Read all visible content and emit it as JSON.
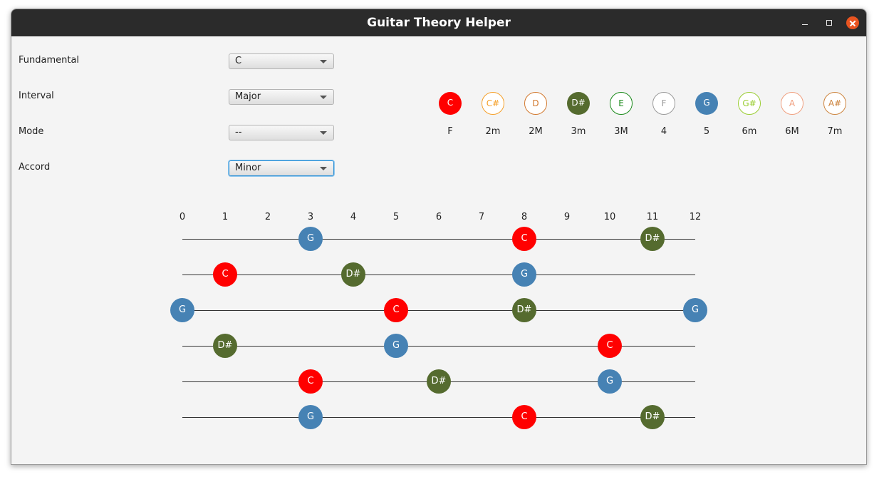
{
  "window": {
    "title": "Guitar Theory Helper"
  },
  "controls": [
    {
      "key": "fundamental",
      "label": "Fundamental",
      "value": "C",
      "focused": false
    },
    {
      "key": "interval",
      "label": "Interval",
      "value": "Major",
      "focused": false
    },
    {
      "key": "mode",
      "label": "Mode",
      "value": "--",
      "focused": false
    },
    {
      "key": "accord",
      "label": "Accord",
      "value": "Minor",
      "focused": true
    }
  ],
  "legend": [
    {
      "note": "C",
      "interval": "F",
      "filled": true,
      "color": "#ff0000"
    },
    {
      "note": "C#",
      "interval": "2m",
      "filled": false,
      "color": "#f5a02a"
    },
    {
      "note": "D",
      "interval": "2M",
      "filled": false,
      "color": "#d2782d"
    },
    {
      "note": "D#",
      "interval": "3m",
      "filled": true,
      "color": "#556b2f"
    },
    {
      "note": "E",
      "interval": "3M",
      "filled": false,
      "color": "#1a8a1a"
    },
    {
      "note": "F",
      "interval": "4",
      "filled": false,
      "color": "#9a9a9a"
    },
    {
      "note": "G",
      "interval": "5",
      "filled": true,
      "color": "#4682b4"
    },
    {
      "note": "G#",
      "interval": "6m",
      "filled": false,
      "color": "#9acd32"
    },
    {
      "note": "A",
      "interval": "6M",
      "filled": false,
      "color": "#f0a080"
    },
    {
      "note": "A#",
      "interval": "7m",
      "filled": false,
      "color": "#cd853f"
    }
  ],
  "fretboard": {
    "frets": [
      "0",
      "1",
      "2",
      "3",
      "4",
      "5",
      "6",
      "7",
      "8",
      "9",
      "10",
      "11",
      "12"
    ],
    "strings": [
      [
        {
          "fret": 3,
          "note": "G"
        },
        {
          "fret": 8,
          "note": "C"
        },
        {
          "fret": 11,
          "note": "D#"
        }
      ],
      [
        {
          "fret": 1,
          "note": "C"
        },
        {
          "fret": 4,
          "note": "D#"
        },
        {
          "fret": 8,
          "note": "G"
        }
      ],
      [
        {
          "fret": 0,
          "note": "G"
        },
        {
          "fret": 5,
          "note": "C"
        },
        {
          "fret": 8,
          "note": "D#"
        },
        {
          "fret": 12,
          "note": "G"
        }
      ],
      [
        {
          "fret": 1,
          "note": "D#"
        },
        {
          "fret": 5,
          "note": "G"
        },
        {
          "fret": 10,
          "note": "C"
        }
      ],
      [
        {
          "fret": 3,
          "note": "C"
        },
        {
          "fret": 6,
          "note": "D#"
        },
        {
          "fret": 10,
          "note": "G"
        }
      ],
      [
        {
          "fret": 3,
          "note": "G"
        },
        {
          "fret": 8,
          "note": "C"
        },
        {
          "fret": 11,
          "note": "D#"
        }
      ]
    ],
    "note_colors": {
      "C": "#ff0000",
      "G": "#4682b4",
      "D#": "#556b2f"
    }
  }
}
